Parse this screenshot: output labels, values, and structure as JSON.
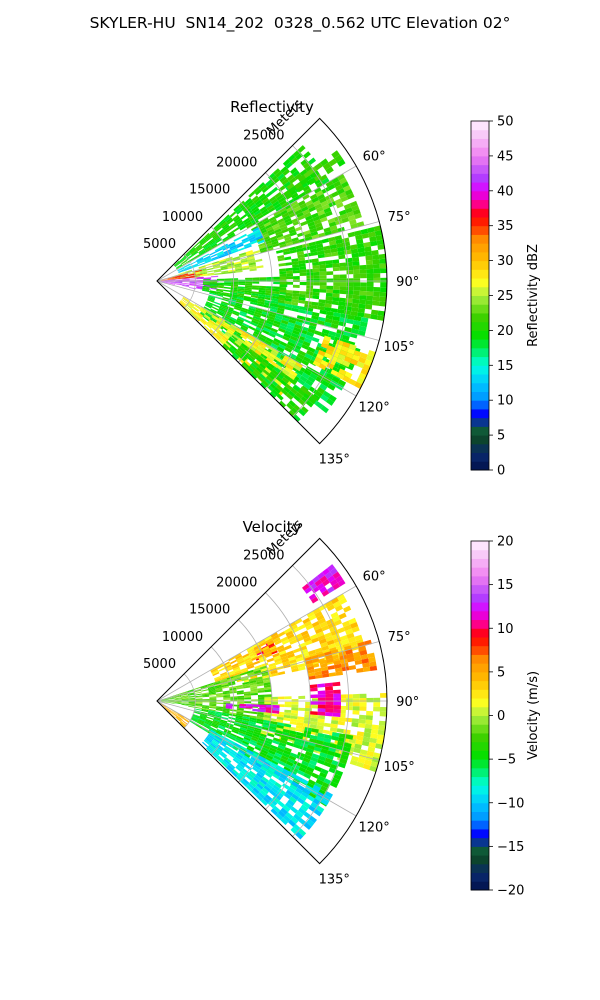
{
  "figure": {
    "suptitle": "SKYLER-HU  SN14_202  0328_0.562 UTC Elevation 02°"
  },
  "chart_data": [
    {
      "type": "heatmap",
      "subtype": "polar-sector (radar PPI)",
      "title": "Reflectivity",
      "radial_axis_label": "Meters",
      "radial_ticks": [
        5000,
        10000,
        15000,
        20000,
        25000
      ],
      "radial_tick_labels": [
        "5000",
        "10000",
        "15000",
        "20000",
        "25000"
      ],
      "radial_range": [
        0,
        30000
      ],
      "azimuth_range_deg": [
        45,
        135
      ],
      "azimuth_ticks": [
        60,
        75,
        90,
        105,
        120,
        135
      ],
      "azimuth_tick_labels": [
        "60°",
        "75°",
        "90°",
        "105°",
        "120°",
        "135°"
      ],
      "grid": true,
      "colorbar": {
        "label": "Reflectivity dBZ",
        "range": [
          0,
          50
        ],
        "ticks": [
          0,
          5,
          10,
          15,
          20,
          25,
          30,
          35,
          40,
          45,
          50
        ],
        "tick_labels": [
          "0",
          "5",
          "10",
          "15",
          "20",
          "25",
          "30",
          "35",
          "40",
          "45",
          "50"
        ]
      },
      "regions": [
        {
          "az": [
            47,
            60
          ],
          "r": [
            3000,
            26000
          ],
          "value": 20
        },
        {
          "az": [
            54,
            58
          ],
          "r": [
            20000,
            29000
          ],
          "value": 21
        },
        {
          "az": [
            60,
            75
          ],
          "r": [
            14000,
            28000
          ],
          "value": 22
        },
        {
          "az": [
            62,
            70
          ],
          "r": [
            3000,
            15000
          ],
          "value": 13
        },
        {
          "az": [
            72,
            84
          ],
          "r": [
            2000,
            14000
          ],
          "value": 25
        },
        {
          "az": [
            76,
            86
          ],
          "r": [
            500,
            6000
          ],
          "value": 35
        },
        {
          "az": [
            85,
            102
          ],
          "r": [
            500,
            8000
          ],
          "value": 42
        },
        {
          "az": [
            88,
            102
          ],
          "r": [
            6000,
            17000
          ],
          "value": 20
        },
        {
          "az": [
            76,
            100
          ],
          "r": [
            16000,
            30000
          ],
          "value": 21
        },
        {
          "az": [
            100,
            128
          ],
          "r": [
            7000,
            28000
          ],
          "value": 19
        },
        {
          "az": [
            108,
            118
          ],
          "r": [
            23000,
            30000
          ],
          "value": 28
        },
        {
          "az": [
            120,
            134
          ],
          "r": [
            4000,
            22000
          ],
          "value": 27
        },
        {
          "az": [
            126,
            135
          ],
          "r": [
            12000,
            26000
          ],
          "value": 20
        }
      ]
    },
    {
      "type": "heatmap",
      "subtype": "polar-sector (radar PPI)",
      "title": "Velocity",
      "radial_axis_label": "Meters",
      "radial_ticks": [
        5000,
        10000,
        15000,
        20000,
        25000
      ],
      "radial_tick_labels": [
        "5000",
        "10000",
        "15000",
        "20000",
        "25000"
      ],
      "radial_range": [
        0,
        30000
      ],
      "azimuth_range_deg": [
        45,
        135
      ],
      "azimuth_ticks": [
        60,
        75,
        90,
        105,
        120,
        135
      ],
      "azimuth_tick_labels": [
        "60°",
        "75°",
        "90°",
        "105°",
        "120°",
        "135°"
      ],
      "grid": true,
      "colorbar": {
        "label": "Velocity (m/s)",
        "range": [
          -20,
          20
        ],
        "ticks": [
          -20,
          -15,
          -10,
          -5,
          0,
          5,
          10,
          15,
          20
        ],
        "tick_labels": [
          "−20",
          "−15",
          "−10",
          "−5",
          "0",
          "5",
          "10",
          "15",
          "20"
        ]
      },
      "regions": [
        {
          "az": [
            52,
            58
          ],
          "r": [
            24000,
            29000
          ],
          "value": 12
        },
        {
          "az": [
            62,
            68
          ],
          "r": [
            14000,
            17000
          ],
          "value": 10
        },
        {
          "az": [
            60,
            78
          ],
          "r": [
            8000,
            28000
          ],
          "value": 3
        },
        {
          "az": [
            74,
            82
          ],
          "r": [
            20000,
            29000
          ],
          "value": 6
        },
        {
          "az": [
            72,
            100
          ],
          "r": [
            500,
            15000
          ],
          "value": -2
        },
        {
          "az": [
            120,
            134
          ],
          "r": [
            500,
            5000
          ],
          "value": 5
        },
        {
          "az": [
            88,
            108
          ],
          "r": [
            14000,
            30000
          ],
          "value": 1
        },
        {
          "az": [
            100,
            122
          ],
          "r": [
            5000,
            26000
          ],
          "value": -5
        },
        {
          "az": [
            118,
            134
          ],
          "r": [
            8000,
            26000
          ],
          "value": -9
        },
        {
          "az": [
            92,
            96
          ],
          "r": [
            9000,
            16000
          ],
          "value": 12
        },
        {
          "az": [
            84,
            95
          ],
          "r": [
            20000,
            24000
          ],
          "value": 11
        }
      ]
    }
  ]
}
